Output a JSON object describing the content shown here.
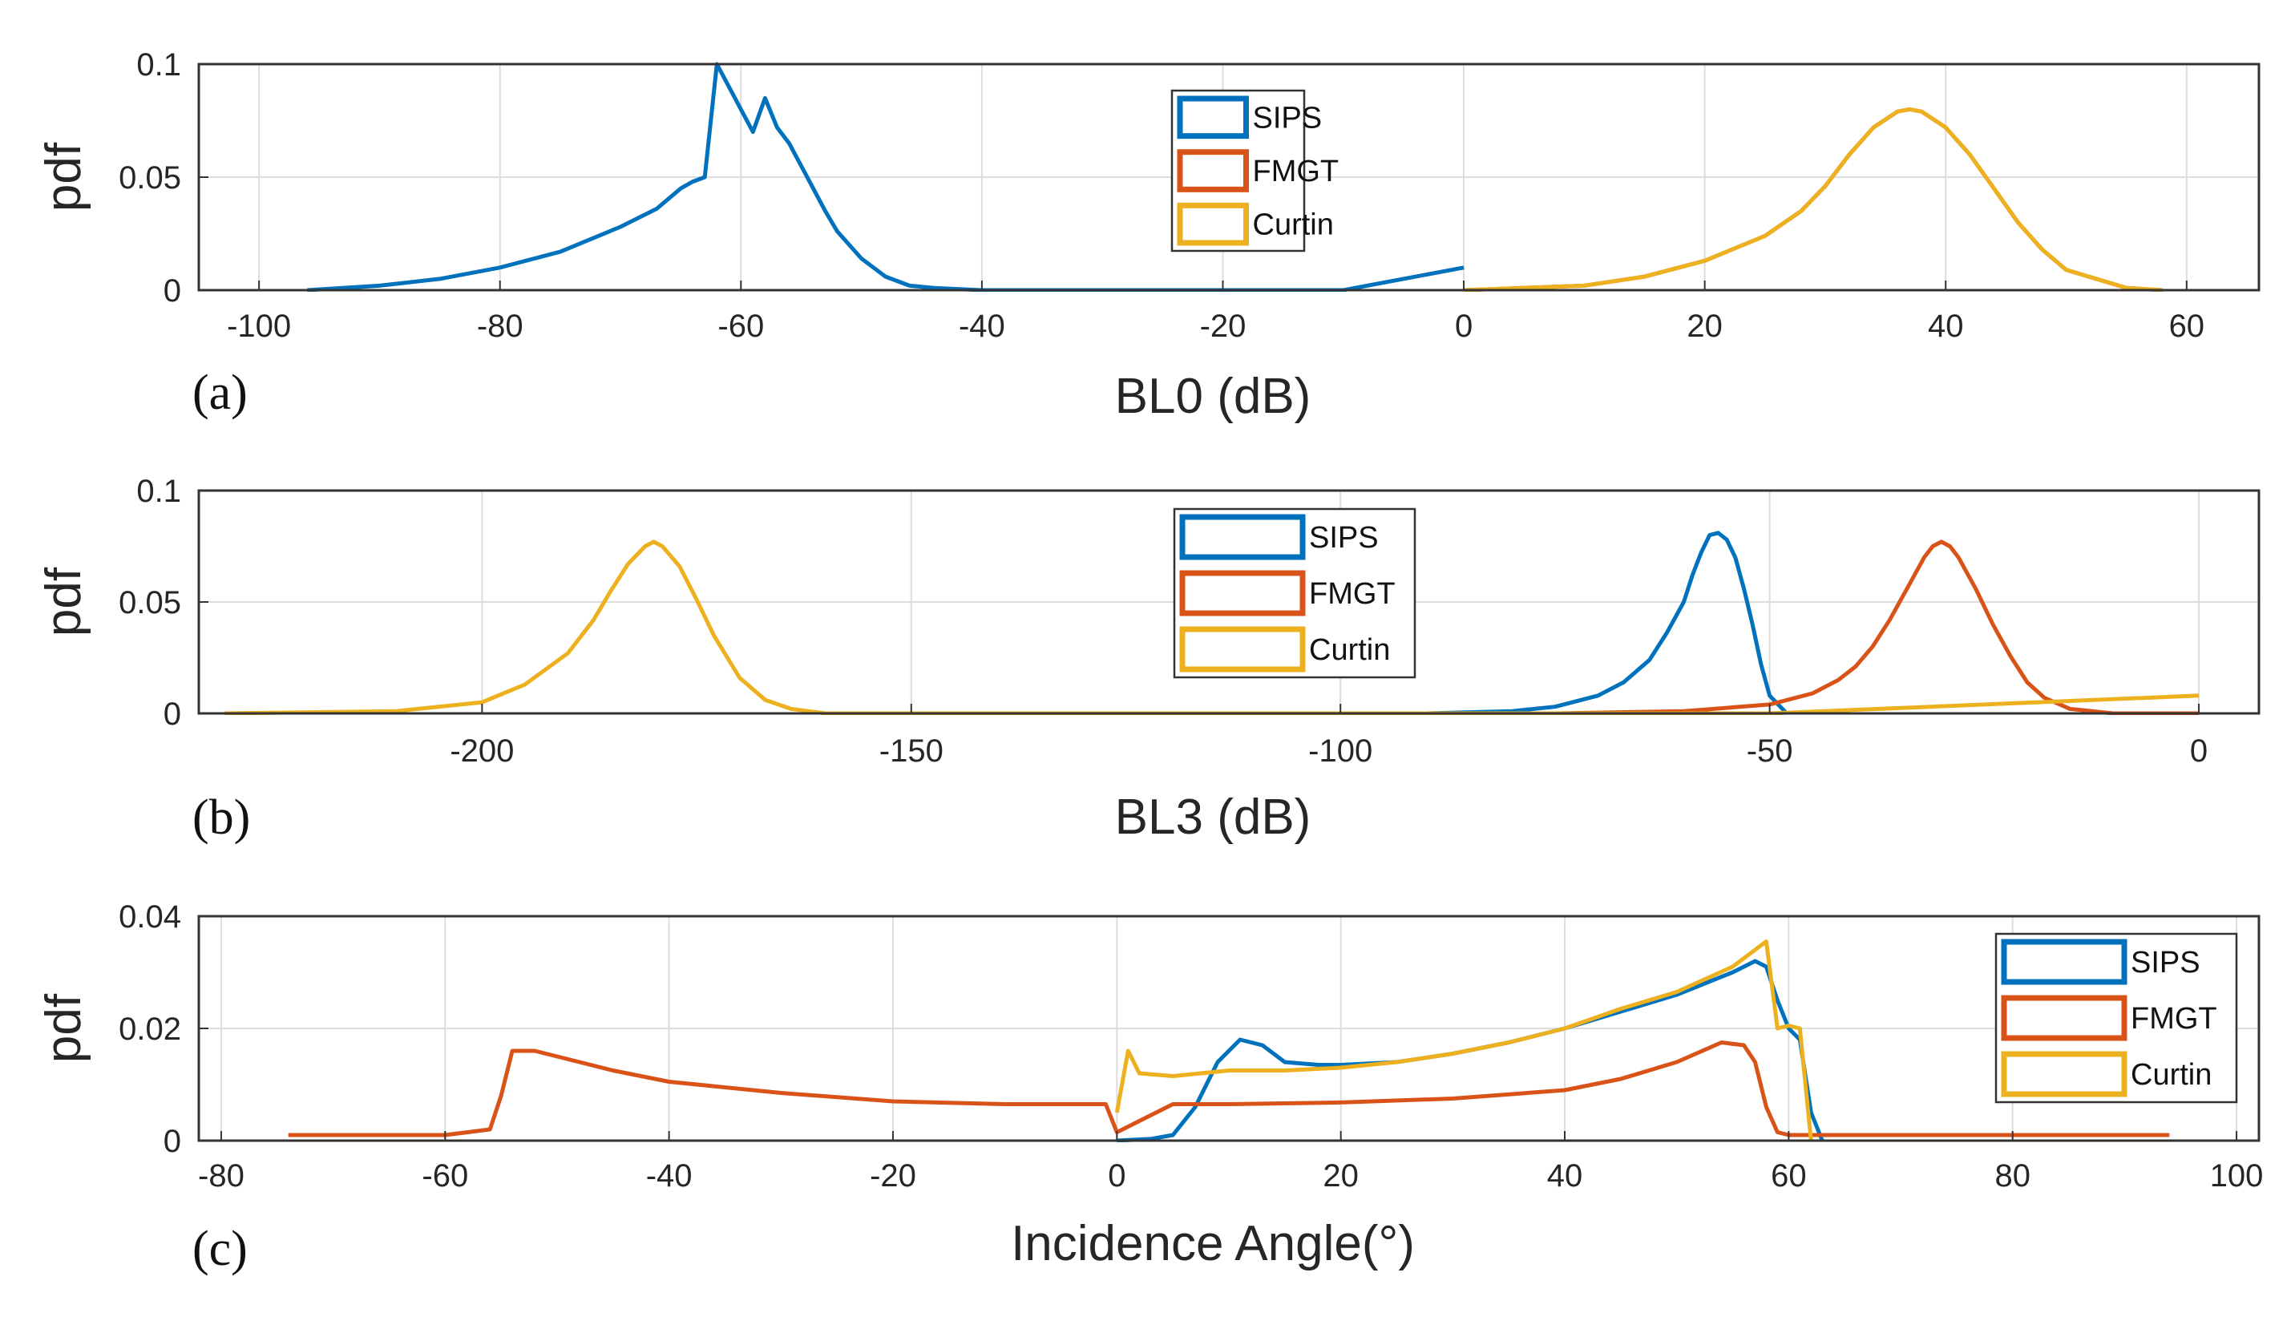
{
  "chart_data": [
    {
      "type": "line",
      "panel": "(a)",
      "xlabel": "BL0 (dB)",
      "ylabel": "pdf",
      "xlim": [
        -105,
        66
      ],
      "ylim": [
        0,
        0.1
      ],
      "xticks": [
        -100,
        -80,
        -60,
        -40,
        -20,
        0,
        20,
        40,
        60
      ],
      "yticks": [
        0,
        0.05,
        0.1
      ],
      "ytick_labels": [
        "0",
        "0.05",
        "0.1"
      ],
      "grid": true,
      "legend_position": "top-center",
      "series": [
        {
          "name": "SIPS",
          "color": "#0072BD",
          "x": [
            -96,
            -90,
            -85,
            -80,
            -75,
            -70,
            -67,
            -65,
            -64,
            -63,
            -62,
            -61,
            -60,
            -59,
            -58,
            -57,
            -56,
            -55,
            -54,
            -53,
            -52,
            -50,
            -48,
            -46,
            -44,
            -42,
            -40,
            -35,
            -30,
            -20,
            -10,
            0
          ],
          "y": [
            0,
            0.002,
            0.005,
            0.01,
            0.017,
            0.028,
            0.036,
            0.045,
            0.048,
            0.05,
            0.1,
            0.09,
            0.08,
            0.07,
            0.085,
            0.072,
            0.065,
            0.055,
            0.045,
            0.035,
            0.026,
            0.014,
            0.006,
            0.002,
            0.001,
            0.0005,
            0,
            0,
            0,
            0,
            0,
            0.01
          ]
        },
        {
          "name": "FMGT",
          "color": "#D95319",
          "x": [
            0,
            10,
            15,
            20,
            25,
            28,
            30,
            32,
            34,
            36,
            37,
            38,
            40,
            42,
            44,
            46,
            48,
            50,
            55,
            58
          ],
          "y": [
            0,
            0.002,
            0.006,
            0.013,
            0.024,
            0.035,
            0.046,
            0.06,
            0.072,
            0.079,
            0.08,
            0.079,
            0.072,
            0.06,
            0.045,
            0.03,
            0.018,
            0.009,
            0.001,
            0
          ]
        },
        {
          "name": "Curtin",
          "color": "#EDB120",
          "x": [
            0,
            10,
            15,
            20,
            25,
            28,
            30,
            32,
            34,
            36,
            37,
            38,
            40,
            42,
            44,
            46,
            48,
            50,
            55,
            58
          ],
          "y": [
            0,
            0.002,
            0.006,
            0.013,
            0.024,
            0.035,
            0.046,
            0.06,
            0.072,
            0.079,
            0.08,
            0.079,
            0.072,
            0.06,
            0.045,
            0.03,
            0.018,
            0.009,
            0.001,
            0
          ]
        }
      ]
    },
    {
      "type": "line",
      "panel": "(b)",
      "xlabel": "BL3 (dB)",
      "ylabel": "pdf",
      "xlim": [
        -233,
        7
      ],
      "ylim": [
        0,
        0.1
      ],
      "xticks": [
        -200,
        -150,
        -100,
        -50,
        0
      ],
      "yticks": [
        0,
        0.05,
        0.1
      ],
      "ytick_labels": [
        "0",
        "0.05",
        "0.1"
      ],
      "grid": true,
      "legend_position": "top-center",
      "series": [
        {
          "name": "SIPS",
          "color": "#0072BD",
          "x": [
            -90,
            -80,
            -75,
            -70,
            -67,
            -64,
            -62,
            -60,
            -59,
            -58,
            -57,
            -56,
            -55,
            -54,
            -53,
            -52,
            -51,
            -50,
            -48
          ],
          "y": [
            0,
            0.001,
            0.003,
            0.008,
            0.014,
            0.024,
            0.036,
            0.05,
            0.062,
            0.072,
            0.08,
            0.081,
            0.078,
            0.07,
            0.056,
            0.04,
            0.022,
            0.008,
            0
          ]
        },
        {
          "name": "FMGT",
          "color": "#D95319",
          "x": [
            -75,
            -60,
            -50,
            -45,
            -42,
            -40,
            -38,
            -36,
            -34,
            -32,
            -31,
            -30,
            -29,
            -28,
            -26,
            -24,
            -22,
            -20,
            -18,
            -15,
            -10,
            0
          ],
          "y": [
            0,
            0.001,
            0.004,
            0.009,
            0.015,
            0.021,
            0.03,
            0.042,
            0.056,
            0.07,
            0.075,
            0.077,
            0.075,
            0.07,
            0.056,
            0.04,
            0.026,
            0.014,
            0.007,
            0.002,
            0,
            0
          ]
        },
        {
          "name": "Curtin",
          "color": "#EDB120",
          "x": [
            -230,
            -210,
            -200,
            -195,
            -190,
            -187,
            -185,
            -183,
            -181,
            -180,
            -179,
            -177,
            -175,
            -173,
            -170,
            -167,
            -164,
            -160,
            -150,
            -100,
            -50,
            0
          ],
          "y": [
            0,
            0.001,
            0.005,
            0.013,
            0.027,
            0.042,
            0.055,
            0.067,
            0.075,
            0.077,
            0.075,
            0.066,
            0.051,
            0.035,
            0.016,
            0.006,
            0.002,
            0,
            0,
            0,
            0,
            0.008
          ]
        }
      ]
    },
    {
      "type": "line",
      "panel": "(c)",
      "xlabel": "Incidence Angle(°)",
      "ylabel": "pdf",
      "xlim": [
        -82,
        102
      ],
      "ylim": [
        0,
        0.04
      ],
      "xticks": [
        -80,
        -60,
        -40,
        -20,
        0,
        20,
        40,
        60,
        80,
        100
      ],
      "yticks": [
        0,
        0.02,
        0.04
      ],
      "ytick_labels": [
        "0",
        "0.02",
        "0.04"
      ],
      "grid": true,
      "legend_position": "top-right",
      "series": [
        {
          "name": "SIPS",
          "color": "#0072BD",
          "x": [
            0,
            3,
            5,
            7,
            9,
            11,
            13,
            15,
            18,
            20,
            25,
            30,
            35,
            40,
            45,
            50,
            55,
            57,
            58,
            59,
            60,
            61,
            62,
            63
          ],
          "y": [
            0,
            0.0003,
            0.001,
            0.006,
            0.014,
            0.018,
            0.017,
            0.014,
            0.0135,
            0.0135,
            0.014,
            0.0155,
            0.0175,
            0.02,
            0.023,
            0.026,
            0.03,
            0.032,
            0.031,
            0.025,
            0.02,
            0.018,
            0.005,
            0
          ]
        },
        {
          "name": "FMGT",
          "color": "#D95319",
          "x": [
            -74,
            -60,
            -56,
            -55,
            -54,
            -52,
            -50,
            -45,
            -40,
            -30,
            -20,
            -10,
            -1,
            0,
            5,
            10,
            20,
            30,
            40,
            45,
            50,
            54,
            56,
            57,
            58,
            59,
            60,
            70,
            80,
            94
          ],
          "y": [
            0.001,
            0.001,
            0.002,
            0.008,
            0.016,
            0.016,
            0.015,
            0.0125,
            0.0105,
            0.0085,
            0.007,
            0.0065,
            0.0065,
            0.0015,
            0.0065,
            0.0065,
            0.0068,
            0.0075,
            0.009,
            0.011,
            0.014,
            0.0175,
            0.017,
            0.014,
            0.006,
            0.0015,
            0.001,
            0.001,
            0.001,
            0.001
          ]
        },
        {
          "name": "Curtin",
          "color": "#EDB120",
          "x": [
            0,
            1,
            2,
            5,
            10,
            15,
            20,
            25,
            30,
            35,
            40,
            45,
            50,
            55,
            58,
            59,
            60,
            61,
            62
          ],
          "y": [
            0.005,
            0.016,
            0.012,
            0.0115,
            0.0125,
            0.0125,
            0.013,
            0.014,
            0.0155,
            0.0175,
            0.02,
            0.0235,
            0.0265,
            0.031,
            0.0355,
            0.02,
            0.0205,
            0.02,
            0
          ]
        }
      ]
    }
  ]
}
